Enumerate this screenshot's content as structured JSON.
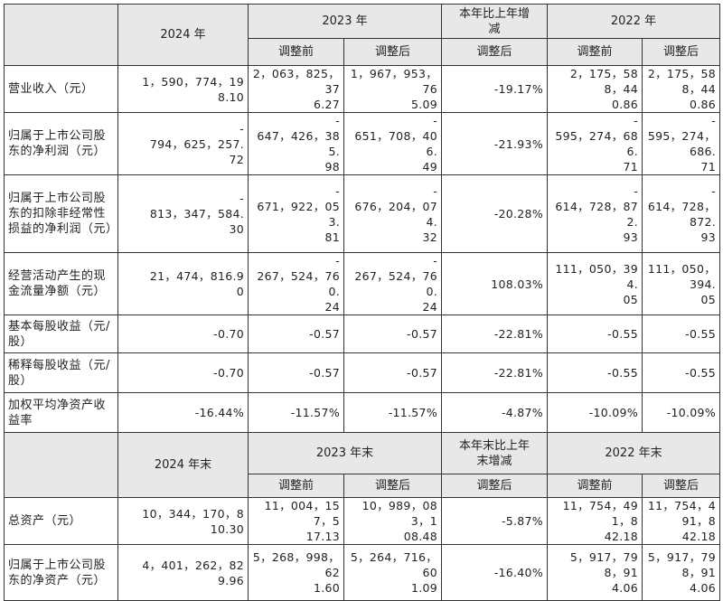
{
  "header1": {
    "y2024": "2024 年",
    "y2023": "2023 年",
    "change": "本年比上年增\n减",
    "y2022": "2022 年",
    "before": "调整前",
    "after": "调整后"
  },
  "rows1": [
    {
      "label": "营业收入（元）",
      "v2024": "1，590，774，19\n8.10",
      "v2023a": "2，063，825，37\n6.27",
      "v2023b": "1，967，953，76\n5.09",
      "chg": "-19.17%",
      "v2022a": "2，175，588，44\n0.86",
      "v2022b": "2，175，588，44\n0.86"
    },
    {
      "label": "归属于上市公司股东的净利润（元）",
      "v2024": "-\n794，625，257.\n72",
      "v2023a": "-\n647，426，385.\n98",
      "v2023b": "-\n651，708，406.\n49",
      "chg": "-21.93%",
      "v2022a": "-\n595，274，686.\n71",
      "v2022b": "-\n595，274，686.\n71"
    },
    {
      "label": "归属于上市公司股东的扣除非经常性损益的净利润（元）",
      "v2024": "-\n813，347，584.\n30",
      "v2023a": "-\n671，922，053.\n81",
      "v2023b": "-\n676，204，074.\n32",
      "chg": "-20.28%",
      "v2022a": "-\n614，728，872.\n93",
      "v2022b": "-\n614，728，872.\n93"
    },
    {
      "label": "经营活动产生的现金流量净额（元）",
      "v2024": "21，474，816.9\n0",
      "v2023a": "-\n267，524，760.\n24",
      "v2023b": "-\n267，524，760.\n24",
      "chg": "108.03%",
      "v2022a": "111，050，394.\n05",
      "v2022b": "111，050，394.\n05"
    },
    {
      "label": "基本每股收益（元/股）",
      "v2024": "-0.70",
      "v2023a": "-0.57",
      "v2023b": "-0.57",
      "chg": "-22.81%",
      "v2022a": "-0.55",
      "v2022b": "-0.55"
    },
    {
      "label": "稀释每股收益（元/股）",
      "v2024": "-0.70",
      "v2023a": "-0.57",
      "v2023b": "-0.57",
      "chg": "-22.81%",
      "v2022a": "-0.55",
      "v2022b": "-0.55"
    },
    {
      "label": "加权平均净资产收益率",
      "v2024": "-16.44%",
      "v2023a": "-11.57%",
      "v2023b": "-11.57%",
      "chg": "-4.87%",
      "v2022a": "-10.09%",
      "v2022b": "-10.09%"
    }
  ],
  "header2": {
    "y2024": "2024 年末",
    "y2023": "2023 年末",
    "change": "本年末比上年\n末增减",
    "y2022": "2022 年末",
    "before": "调整前",
    "after": "调整后"
  },
  "rows2": [
    {
      "label": "总资产（元）",
      "v2024": "10，344，170，8\n10.30",
      "v2023a": "11，004，157，5\n17.13",
      "v2023b": "10，989，083，1\n08.48",
      "chg": "-5.87%",
      "v2022a": "11，754，491，8\n42.18",
      "v2022b": "11，754，491，8\n42.18"
    },
    {
      "label": "归属于上市公司股东的净资产（元）",
      "v2024": "4，401，262，82\n9.96",
      "v2023a": "5，268，998，62\n1.60",
      "v2023b": "5，264，716，60\n1.09",
      "chg": "-16.40%",
      "v2022a": "5，917，798，91\n4.06",
      "v2022b": "5，917，798，91\n4.06"
    }
  ]
}
